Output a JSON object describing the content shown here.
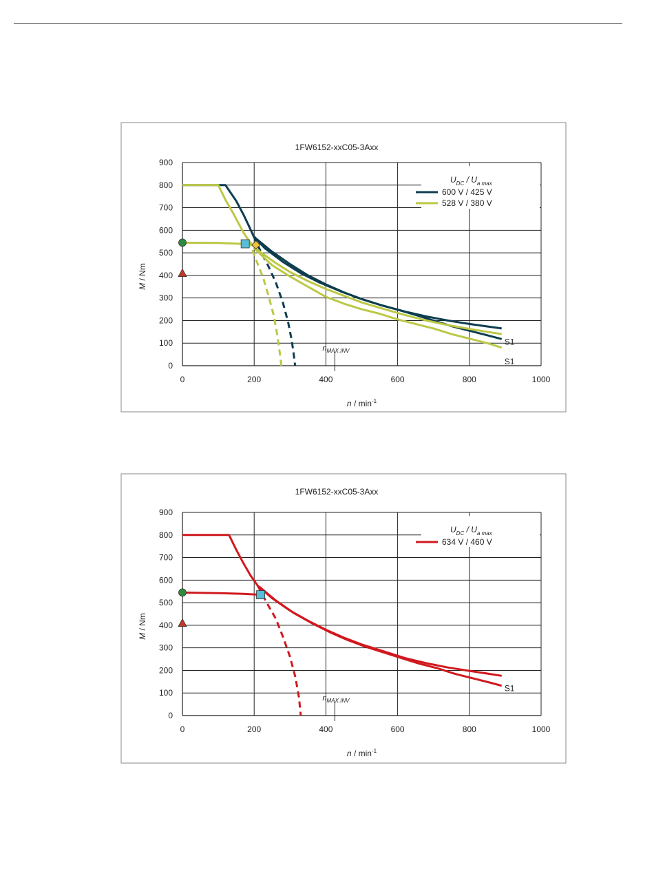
{
  "chart_data": [
    {
      "type": "line",
      "title": "1FW6152-xxC05-3Axx",
      "xlabel": {
        "symbol": "n",
        "unit": " / min",
        "exp": "-1"
      },
      "ylabel": {
        "symbol": "M",
        "unit": " / Nm"
      },
      "xlim": [
        0,
        1000
      ],
      "ylim": [
        0,
        900
      ],
      "xticks": [
        0,
        200,
        400,
        600,
        800,
        1000
      ],
      "yticks": [
        0,
        100,
        200,
        300,
        400,
        500,
        600,
        700,
        800,
        900
      ],
      "grid": true,
      "legend_position": "top-right",
      "legend_header": {
        "u1": "U",
        "u1_sub": "DC",
        "sep": " / ",
        "u2": "U",
        "u2_sub": "a max"
      },
      "series": [
        {
          "name": "600 V / 425 V",
          "color": "#0d3d4e",
          "envelope": [
            [
              0,
              800
            ],
            [
              120,
              800
            ],
            [
              150,
              730
            ],
            [
              170,
              670
            ],
            [
              185,
              620
            ],
            [
              198,
              575
            ],
            [
              230,
              520
            ],
            [
              280,
              460
            ],
            [
              330,
              410
            ],
            [
              380,
              370
            ],
            [
              440,
              330
            ],
            [
              500,
              295
            ],
            [
              560,
              265
            ],
            [
              620,
              240
            ],
            [
              680,
              218
            ],
            [
              740,
              200
            ],
            [
              800,
              185
            ],
            [
              850,
              174
            ],
            [
              890,
              165
            ]
          ],
          "s1": [
            [
              200,
              570
            ],
            [
              250,
              505
            ],
            [
              300,
              450
            ],
            [
              350,
              400
            ],
            [
              400,
              360
            ],
            [
              450,
              325
            ],
            [
              500,
              295
            ],
            [
              550,
              270
            ],
            [
              600,
              248
            ],
            [
              650,
              225
            ],
            [
              700,
              200
            ],
            [
              750,
              175
            ],
            [
              800,
              155
            ],
            [
              850,
              135
            ],
            [
              890,
              118
            ]
          ],
          "dashed": [
            [
              198,
              575
            ],
            [
              220,
              500
            ],
            [
              240,
              440
            ],
            [
              260,
              370
            ],
            [
              280,
              280
            ],
            [
              295,
              190
            ],
            [
              305,
              110
            ],
            [
              312,
              30
            ],
            [
              314,
              0
            ]
          ],
          "s1_label": "S1"
        },
        {
          "name": "528 V / 380 V",
          "color": "#bcc845",
          "envelope": [
            [
              0,
              800
            ],
            [
              100,
              800
            ],
            [
              120,
              735
            ],
            [
              140,
              680
            ],
            [
              155,
              635
            ],
            [
              170,
              590
            ],
            [
              185,
              555
            ],
            [
              198,
              530
            ],
            [
              220,
              500
            ],
            [
              260,
              455
            ],
            [
              300,
              415
            ],
            [
              350,
              375
            ],
            [
              400,
              340
            ],
            [
              450,
              310
            ],
            [
              500,
              280
            ],
            [
              560,
              252
            ],
            [
              620,
              225
            ],
            [
              680,
              200
            ],
            [
              740,
              180
            ],
            [
              800,
              163
            ],
            [
              850,
              150
            ],
            [
              890,
              140
            ]
          ],
          "s1": [
            [
              200,
              520
            ],
            [
              250,
              445
            ],
            [
              300,
              395
            ],
            [
              350,
              350
            ],
            [
              400,
              305
            ],
            [
              450,
              275
            ],
            [
              500,
              250
            ],
            [
              550,
              230
            ],
            [
              600,
              205
            ],
            [
              650,
              185
            ],
            [
              700,
              165
            ],
            [
              750,
              140
            ],
            [
              800,
              120
            ],
            [
              850,
              100
            ],
            [
              890,
              80
            ]
          ],
          "dashed": [
            [
              185,
              555
            ],
            [
              205,
              470
            ],
            [
              225,
              390
            ],
            [
              240,
              310
            ],
            [
              255,
              220
            ],
            [
              265,
              130
            ],
            [
              272,
              50
            ],
            [
              276,
              0
            ]
          ],
          "s1_label": "S1"
        }
      ],
      "points": [
        {
          "type": "circle",
          "x": 0,
          "y": 545,
          "color": "#2e8b3e"
        },
        {
          "type": "triangle",
          "x": 0,
          "y": 410,
          "color": "#c0392b"
        },
        {
          "type": "square",
          "x": 175,
          "y": 540,
          "color": "#5bbcd6"
        },
        {
          "type": "diamond",
          "x": 205,
          "y": 535,
          "color": "#f0c23a"
        }
      ],
      "continuous_line": [
        [
          0,
          545
        ],
        [
          100,
          544
        ],
        [
          160,
          540
        ],
        [
          205,
          535
        ]
      ],
      "nmax_label": {
        "base": "n",
        "sub": "MAX,INV",
        "x": 425
      }
    },
    {
      "type": "line",
      "title": "1FW6152-xxC05-3Axx",
      "xlabel": {
        "symbol": "n",
        "unit": " / min",
        "exp": "-1"
      },
      "ylabel": {
        "symbol": "M",
        "unit": " / Nm"
      },
      "xlim": [
        0,
        1000
      ],
      "ylim": [
        0,
        900
      ],
      "xticks": [
        0,
        200,
        400,
        600,
        800,
        1000
      ],
      "yticks": [
        0,
        100,
        200,
        300,
        400,
        500,
        600,
        700,
        800,
        900
      ],
      "grid": true,
      "legend_position": "top-right",
      "legend_header": {
        "u1": "U",
        "u1_sub": "DC",
        "sep": " / ",
        "u2": "U",
        "u2_sub": "a max"
      },
      "series": [
        {
          "name": "634 V / 460 V",
          "color": "#d0191f",
          "envelope": [
            [
              0,
              800
            ],
            [
              130,
              800
            ],
            [
              150,
              735
            ],
            [
              170,
              675
            ],
            [
              190,
              620
            ],
            [
              210,
              575
            ],
            [
              250,
              520
            ],
            [
              300,
              465
            ],
            [
              350,
              420
            ],
            [
              400,
              380
            ],
            [
              450,
              345
            ],
            [
              500,
              315
            ],
            [
              560,
              285
            ],
            [
              620,
              255
            ],
            [
              680,
              232
            ],
            [
              740,
              213
            ],
            [
              800,
              198
            ],
            [
              850,
              186
            ],
            [
              890,
              176
            ]
          ],
          "s1": [
            [
              215,
              570
            ],
            [
              260,
              510
            ],
            [
              310,
              455
            ],
            [
              360,
              410
            ],
            [
              410,
              370
            ],
            [
              460,
              335
            ],
            [
              510,
              305
            ],
            [
              560,
              280
            ],
            [
              610,
              255
            ],
            [
              660,
              230
            ],
            [
              710,
              210
            ],
            [
              760,
              185
            ],
            [
              810,
              165
            ],
            [
              860,
              145
            ],
            [
              890,
              132
            ]
          ],
          "dashed": [
            [
              210,
              575
            ],
            [
              235,
              500
            ],
            [
              260,
              430
            ],
            [
              280,
              350
            ],
            [
              300,
              260
            ],
            [
              315,
              170
            ],
            [
              325,
              80
            ],
            [
              330,
              0
            ]
          ],
          "s1_label": "S1"
        }
      ],
      "points": [
        {
          "type": "circle",
          "x": 0,
          "y": 545,
          "color": "#2e8b3e"
        },
        {
          "type": "triangle",
          "x": 0,
          "y": 410,
          "color": "#c0392b"
        },
        {
          "type": "square",
          "x": 218,
          "y": 535,
          "color": "#5bbcd6"
        }
      ],
      "continuous_line": [
        [
          0,
          545
        ],
        [
          100,
          542
        ],
        [
          170,
          539
        ],
        [
          218,
          535
        ]
      ],
      "nmax_label": {
        "base": "n",
        "sub": "MAX,INV",
        "x": 425
      }
    }
  ]
}
